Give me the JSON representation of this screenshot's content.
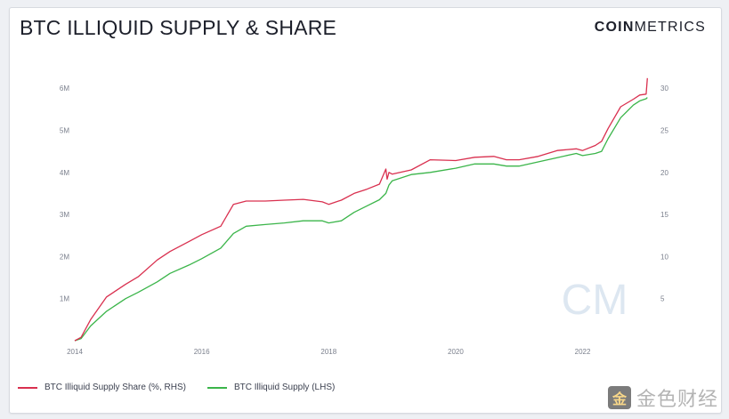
{
  "title": "BTC ILLIQUID SUPPLY & SHARE",
  "brand": {
    "bold": "COIN",
    "regular": "METRICS"
  },
  "watermark": {
    "plot_mark": "CM",
    "badge_text": "金色财经",
    "badge_logo": "金"
  },
  "colors": {
    "share": "#d9304f",
    "supply": "#3bb54a",
    "watermark": "#9fb9d6"
  },
  "chart_data": {
    "type": "line",
    "title": "BTC ILLIQUID SUPPLY & SHARE",
    "xlabel": "",
    "ylabel": "",
    "x_ticks": [
      "2014",
      "2016",
      "2018",
      "2020",
      "2022"
    ],
    "y_left_ticks": [
      "1M",
      "2M",
      "3M",
      "4M",
      "5M",
      "6M"
    ],
    "y_right_ticks": [
      "5",
      "10",
      "15",
      "20",
      "25",
      "30"
    ],
    "ylim_left": [
      0,
      6300000
    ],
    "ylim_right": [
      0,
      31.5
    ],
    "xlim": [
      2014.0,
      2023.1
    ],
    "grid": false,
    "legend_position": "bottom-left",
    "series": [
      {
        "name": "BTC Illiquid Supply Share (%, RHS)",
        "axis": "right",
        "x": [
          2014.0,
          2014.1,
          2014.25,
          2014.5,
          2014.8,
          2015.0,
          2015.3,
          2015.5,
          2015.8,
          2016.0,
          2016.3,
          2016.5,
          2016.7,
          2017.0,
          2017.3,
          2017.6,
          2017.9,
          2018.0,
          2018.2,
          2018.4,
          2018.6,
          2018.8,
          2018.9,
          2018.92,
          2018.95,
          2019.0,
          2019.3,
          2019.6,
          2020.0,
          2020.3,
          2020.6,
          2020.8,
          2021.0,
          2021.3,
          2021.6,
          2021.9,
          2022.0,
          2022.2,
          2022.3,
          2022.4,
          2022.6,
          2022.8,
          2022.9,
          2023.0,
          2023.02
        ],
        "values": [
          0.0,
          0.4,
          2.5,
          5.2,
          6.7,
          7.6,
          9.6,
          10.6,
          11.8,
          12.6,
          13.6,
          16.2,
          16.6,
          16.6,
          16.7,
          16.8,
          16.5,
          16.2,
          16.7,
          17.5,
          18.0,
          18.6,
          20.4,
          19.2,
          20.0,
          19.8,
          20.3,
          21.5,
          21.4,
          21.8,
          21.9,
          21.5,
          21.5,
          21.9,
          22.6,
          22.8,
          22.6,
          23.2,
          23.7,
          25.2,
          27.8,
          28.7,
          29.2,
          29.3,
          31.2
        ]
      },
      {
        "name": "BTC Illiquid Supply (LHS)",
        "axis": "left",
        "x": [
          2014.0,
          2014.1,
          2014.25,
          2014.5,
          2014.8,
          2015.0,
          2015.3,
          2015.5,
          2015.8,
          2016.0,
          2016.3,
          2016.5,
          2016.7,
          2017.0,
          2017.3,
          2017.6,
          2017.9,
          2018.0,
          2018.2,
          2018.4,
          2018.6,
          2018.8,
          2018.9,
          2018.95,
          2019.0,
          2019.3,
          2019.6,
          2020.0,
          2020.3,
          2020.6,
          2020.8,
          2021.0,
          2021.3,
          2021.6,
          2021.9,
          2022.0,
          2022.2,
          2022.3,
          2022.4,
          2022.6,
          2022.8,
          2022.9,
          2023.0,
          2023.02
        ],
        "values": [
          0,
          50000,
          350000,
          700000,
          1000000,
          1150000,
          1400000,
          1600000,
          1800000,
          1950000,
          2200000,
          2550000,
          2720000,
          2760000,
          2800000,
          2850000,
          2850000,
          2800000,
          2850000,
          3050000,
          3200000,
          3350000,
          3500000,
          3700000,
          3800000,
          3950000,
          4000000,
          4100000,
          4200000,
          4200000,
          4150000,
          4150000,
          4250000,
          4350000,
          4450000,
          4400000,
          4450000,
          4500000,
          4800000,
          5300000,
          5600000,
          5700000,
          5750000,
          5780000
        ]
      }
    ]
  },
  "legend": [
    {
      "label": "BTC Illiquid Supply Share (%, RHS)",
      "color": "#d9304f"
    },
    {
      "label": "BTC Illiquid Supply (LHS)",
      "color": "#3bb54a"
    }
  ]
}
